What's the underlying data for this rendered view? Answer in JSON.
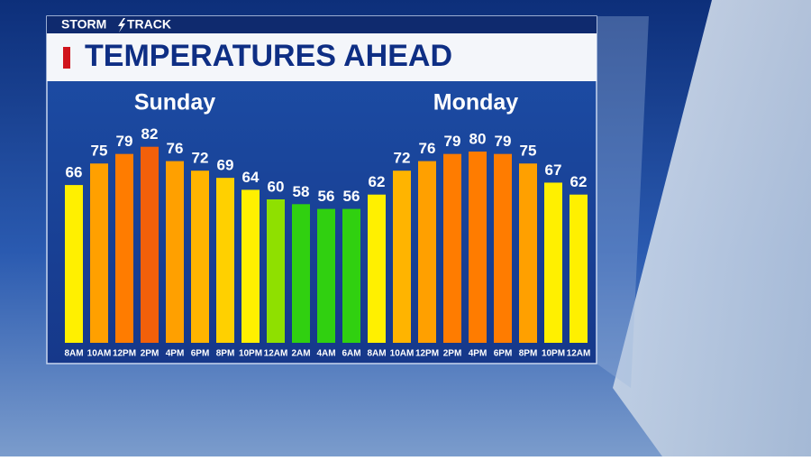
{
  "header": {
    "brand_left": "STORM",
    "brand_right": "TRACK"
  },
  "chart_data": {
    "type": "bar",
    "title": "TEMPERATURES AHEAD",
    "day_labels": [
      "Sunday",
      "Monday"
    ],
    "categories": [
      "8AM",
      "10AM",
      "12PM",
      "2PM",
      "4PM",
      "6PM",
      "8PM",
      "10PM",
      "12AM",
      "2AM",
      "4AM",
      "6AM",
      "8AM",
      "10AM",
      "12PM",
      "2PM",
      "4PM",
      "6PM",
      "8PM",
      "10PM",
      "12AM"
    ],
    "values": [
      66,
      75,
      79,
      82,
      76,
      72,
      69,
      64,
      60,
      58,
      56,
      56,
      62,
      72,
      76,
      79,
      80,
      79,
      75,
      67,
      62
    ],
    "colors": [
      "#fff000",
      "#ffa000",
      "#ff7c00",
      "#f2600a",
      "#ffa000",
      "#ffb400",
      "#ffd000",
      "#fff000",
      "#8fe000",
      "#30d010",
      "#30d010",
      "#30d010",
      "#fff000",
      "#ffb400",
      "#ffa000",
      "#ff7c00",
      "#ff7c00",
      "#ff7c00",
      "#ffa000",
      "#fff000",
      "#fff000"
    ]
  }
}
